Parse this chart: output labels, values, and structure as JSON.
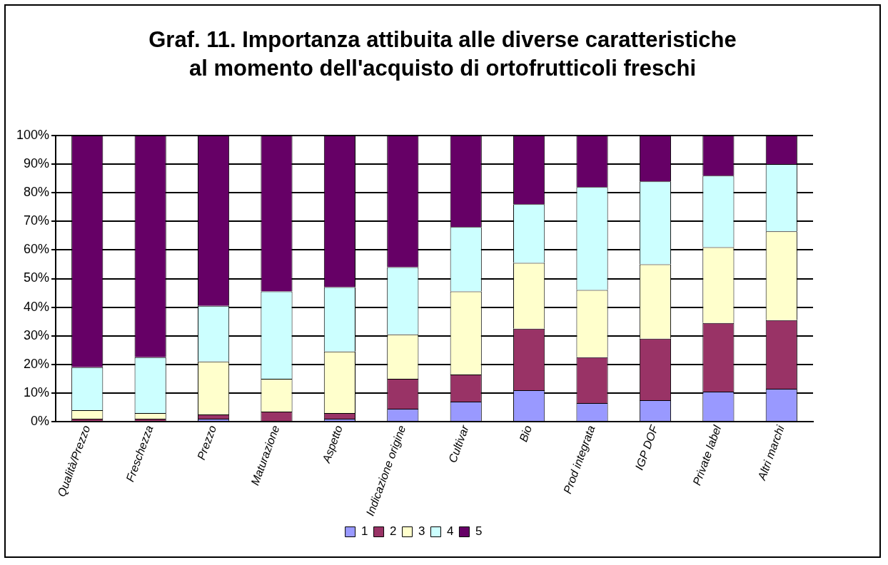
{
  "chart_data": {
    "type": "bar",
    "stacked": true,
    "title": "Graf. 11. Importanza attibuita alle diverse caratteristiche\nal momento dell'acquisto di ortofrutticoli freschi",
    "categories": [
      "Qualità/Prezzo",
      "Freschezza",
      "Prezzo",
      "Maturazione",
      "Aspetto",
      "Indicazione origine",
      "Cultivar",
      "Bio",
      "Prod integrata",
      "IGP DOF",
      "Private label",
      "Altri marchi"
    ],
    "series": [
      {
        "name": "1",
        "color": "#9999ff",
        "values": [
          0,
          0,
          1,
          0,
          1,
          4.5,
          7,
          11,
          6.5,
          7.5,
          10.5,
          11.5
        ]
      },
      {
        "name": "2",
        "color": "#993366",
        "values": [
          1,
          1,
          1.5,
          3.5,
          2,
          10.5,
          9.5,
          21.5,
          16,
          21.5,
          24,
          24
        ]
      },
      {
        "name": "3",
        "color": "#ffffcc",
        "values": [
          3,
          2,
          18.5,
          11.5,
          21.5,
          15.5,
          29,
          23,
          23.5,
          26,
          26.5,
          31
        ]
      },
      {
        "name": "4",
        "color": "#ccffff",
        "values": [
          15,
          19.5,
          19.5,
          30.5,
          22.5,
          23.5,
          22.5,
          20.5,
          36,
          29,
          25,
          23.5
        ]
      },
      {
        "name": "5",
        "color": "#660066",
        "values": [
          81,
          77.5,
          59.5,
          54.5,
          53,
          46,
          32,
          24,
          18,
          16,
          14,
          10
        ]
      }
    ],
    "ylim": [
      0,
      100
    ],
    "yticks": [
      {
        "value": 0,
        "label": "0%"
      },
      {
        "value": 10,
        "label": "10%"
      },
      {
        "value": 20,
        "label": "20%"
      },
      {
        "value": 30,
        "label": "30%"
      },
      {
        "value": 40,
        "label": "40%"
      },
      {
        "value": 50,
        "label": "50%"
      },
      {
        "value": 60,
        "label": "60%"
      },
      {
        "value": 70,
        "label": "70%"
      },
      {
        "value": 80,
        "label": "80%"
      },
      {
        "value": 90,
        "label": "90%"
      },
      {
        "value": 100,
        "label": "100%"
      }
    ],
    "grid": "y",
    "legend": "bottom"
  }
}
